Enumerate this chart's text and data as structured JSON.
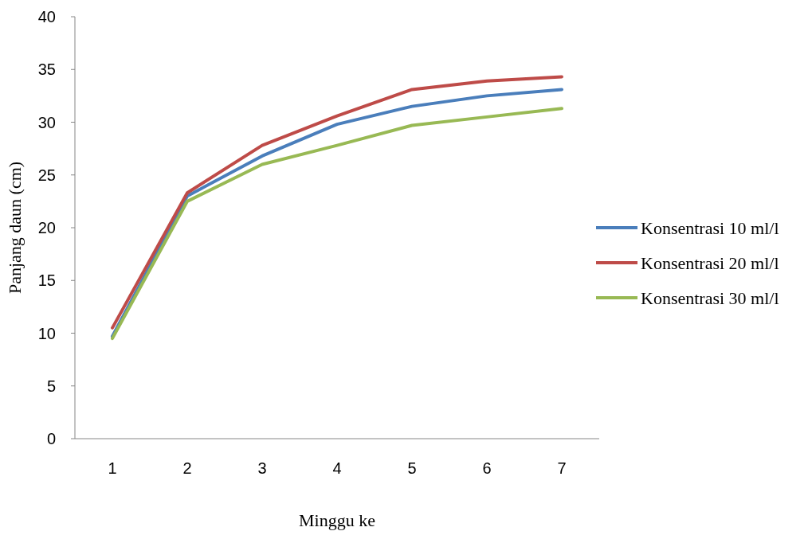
{
  "chart_data": {
    "type": "line",
    "xlabel": "Minggu ke",
    "ylabel": "Panjang daun (cm)",
    "categories": [
      "1",
      "2",
      "3",
      "4",
      "5",
      "6",
      "7"
    ],
    "series": [
      {
        "name": "Konsentrasi 10 ml/l",
        "color": "#4a7ebb",
        "values": [
          9.7,
          23.0,
          26.8,
          29.8,
          31.5,
          32.5,
          33.1
        ]
      },
      {
        "name": "Konsentrasi 20 ml/l",
        "color": "#be4b48",
        "values": [
          10.5,
          23.3,
          27.8,
          30.6,
          33.1,
          33.9,
          34.3
        ]
      },
      {
        "name": "Konsentrasi 30 ml/l",
        "color": "#98b954",
        "values": [
          9.5,
          22.5,
          26.0,
          27.8,
          29.7,
          30.5,
          31.3
        ]
      }
    ],
    "ylim": [
      0,
      40
    ],
    "yticks": [
      0,
      5,
      10,
      15,
      20,
      25,
      30,
      35,
      40
    ],
    "grid": false,
    "legend": "right",
    "marker": "none",
    "line_style": "solid"
  }
}
